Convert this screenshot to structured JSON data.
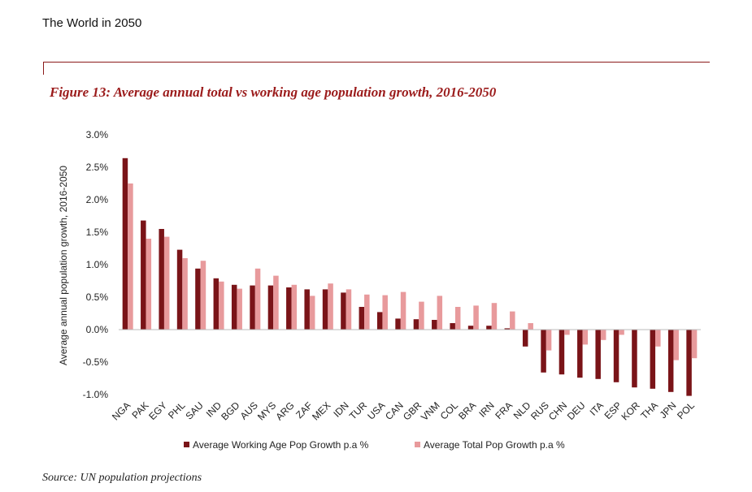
{
  "header": {
    "text": "The World in 2050"
  },
  "figure": {
    "title": "Figure 13: Average annual total vs working age population growth, 2016-2050"
  },
  "source": "Source: UN population projections",
  "colors": {
    "working": "#7a1418",
    "total": "#e89a9c",
    "rule": "#8b1a1a",
    "title": "#9b1b1b"
  },
  "chart_data": {
    "type": "bar",
    "ylabel": "Average annual population growth, 2016-2050",
    "xlabel": "",
    "ylim": [
      -1.0,
      3.0
    ],
    "yticks": [
      -1.0,
      -0.5,
      0.0,
      0.5,
      1.0,
      1.5,
      2.0,
      2.5,
      3.0
    ],
    "ytick_labels": [
      "-1.0%",
      "-0.5%",
      "0.0%",
      "0.5%",
      "1.0%",
      "1.5%",
      "2.0%",
      "2.5%",
      "3.0%"
    ],
    "grid": false,
    "legend_position": "bottom",
    "categories": [
      "NGA",
      "PAK",
      "EGY",
      "PHL",
      "SAU",
      "IND",
      "BGD",
      "AUS",
      "MYS",
      "ARG",
      "ZAF",
      "MEX",
      "IDN",
      "TUR",
      "USA",
      "CAN",
      "GBR",
      "VNM",
      "COL",
      "BRA",
      "IRN",
      "FRA",
      "NLD",
      "RUS",
      "CHN",
      "DEU",
      "ITA",
      "ESP",
      "KOR",
      "THA",
      "JPN",
      "POL"
    ],
    "series": [
      {
        "name": "Average Working Age Pop Growth p.a %",
        "values": [
          2.64,
          1.68,
          1.55,
          1.23,
          0.94,
          0.79,
          0.69,
          0.68,
          0.68,
          0.65,
          0.62,
          0.62,
          0.57,
          0.35,
          0.27,
          0.17,
          0.16,
          0.15,
          0.1,
          0.06,
          0.06,
          0.02,
          -0.26,
          -0.66,
          -0.69,
          -0.74,
          -0.76,
          -0.81,
          -0.89,
          -0.91,
          -0.96,
          -1.02
        ]
      },
      {
        "name": "Average Total Pop Growth p.a %",
        "values": [
          2.25,
          1.4,
          1.43,
          1.1,
          1.06,
          0.74,
          0.63,
          0.94,
          0.83,
          0.69,
          0.52,
          0.71,
          0.62,
          0.54,
          0.53,
          0.58,
          0.43,
          0.52,
          0.35,
          0.37,
          0.41,
          0.28,
          0.1,
          -0.32,
          -0.08,
          -0.23,
          -0.16,
          -0.08,
          0.0,
          -0.26,
          -0.47,
          -0.44
        ]
      }
    ]
  }
}
